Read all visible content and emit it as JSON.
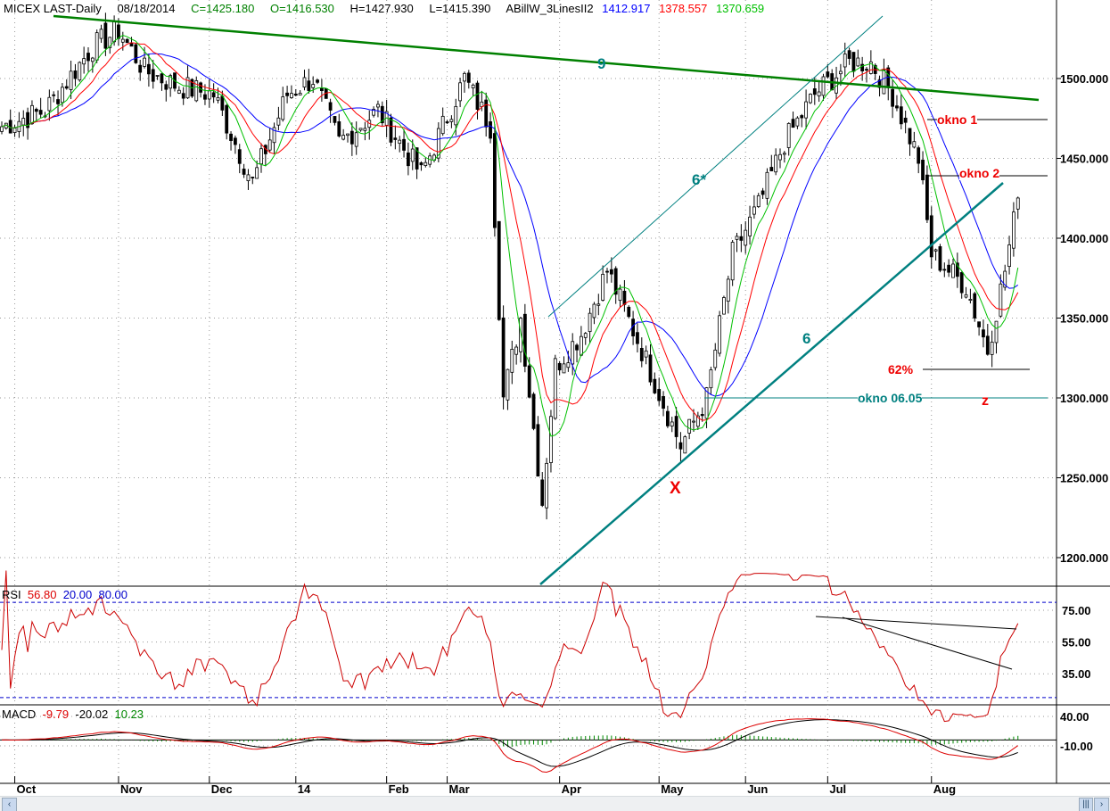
{
  "header": {
    "symbol": "MICEX LAST-Daily",
    "date": "08/18/2014",
    "close": "C=1425.180",
    "open": "O=1416.530",
    "high": "H=1427.930",
    "low": "L=1415.390",
    "indicator": "ABillW_3LinesII2",
    "ma1": "1412.917",
    "ma2": "1378.557",
    "ma3": "1370.659"
  },
  "colors": {
    "up": "#000000",
    "ma_blue": "#0000ff",
    "ma_red": "#ff0000",
    "ma_green": "#00c000",
    "trend": "#008080",
    "trend9": "#008000",
    "rsi": "#cc0000"
  },
  "rsi_header": {
    "label": "RSI",
    "value": "56.80",
    "low": "20.00",
    "high": "80.00"
  },
  "macd_header": {
    "label": "MACD",
    "value": "-9.79",
    "signal": "-20.02",
    "hist": "10.23"
  },
  "annotations": {
    "line9": "9",
    "line6": "6",
    "line6star": "6*",
    "okno1": "okno 1",
    "okno2": "okno 2",
    "pct62": "62%",
    "okno0605": "okno 06.05",
    "x": "X",
    "z": "z"
  },
  "chart_data": {
    "type": "candlestick",
    "title": "MICEX LAST-Daily",
    "price_ticks": [
      1200,
      1250,
      1300,
      1350,
      1400,
      1450,
      1500
    ],
    "price_tick_labels": [
      "1200.000",
      "1250.000",
      "1300.000",
      "1350.000",
      "1400.000",
      "1450.000",
      "1500.000"
    ],
    "ylim": [
      1182,
      1548
    ],
    "rsi_ticks": [
      "75.00",
      "55.00",
      "35.00"
    ],
    "macd_ticks": [
      "40.00",
      "-10.00"
    ],
    "months": [
      "Oct",
      "Nov",
      "Dec",
      "14",
      "Feb",
      "Mar",
      "Apr",
      "May",
      "Jun",
      "Jul",
      "Aug"
    ],
    "month_days": [
      3,
      27,
      48,
      68,
      89,
      103,
      129,
      152,
      172,
      191,
      215
    ],
    "days": 236,
    "close_anchors": [
      [
        0,
        1470
      ],
      [
        10,
        1480
      ],
      [
        21,
        1520
      ],
      [
        27,
        1530
      ],
      [
        33,
        1505
      ],
      [
        41,
        1495
      ],
      [
        49,
        1490
      ],
      [
        58,
        1435
      ],
      [
        66,
        1490
      ],
      [
        72,
        1500
      ],
      [
        78,
        1460
      ],
      [
        87,
        1480
      ],
      [
        97,
        1440
      ],
      [
        107,
        1500
      ],
      [
        113,
        1470
      ],
      [
        116,
        1300
      ],
      [
        120,
        1350
      ],
      [
        125,
        1235
      ],
      [
        128,
        1320
      ],
      [
        134,
        1340
      ],
      [
        140,
        1380
      ],
      [
        148,
        1330
      ],
      [
        157,
        1270
      ],
      [
        163,
        1300
      ],
      [
        169,
        1390
      ],
      [
        175,
        1420
      ],
      [
        181,
        1460
      ],
      [
        188,
        1490
      ],
      [
        196,
        1510
      ],
      [
        201,
        1510
      ],
      [
        206,
        1490
      ],
      [
        212,
        1450
      ],
      [
        215,
        1390
      ],
      [
        223,
        1370
      ],
      [
        228,
        1330
      ],
      [
        232,
        1380
      ],
      [
        235,
        1425
      ]
    ]
  }
}
